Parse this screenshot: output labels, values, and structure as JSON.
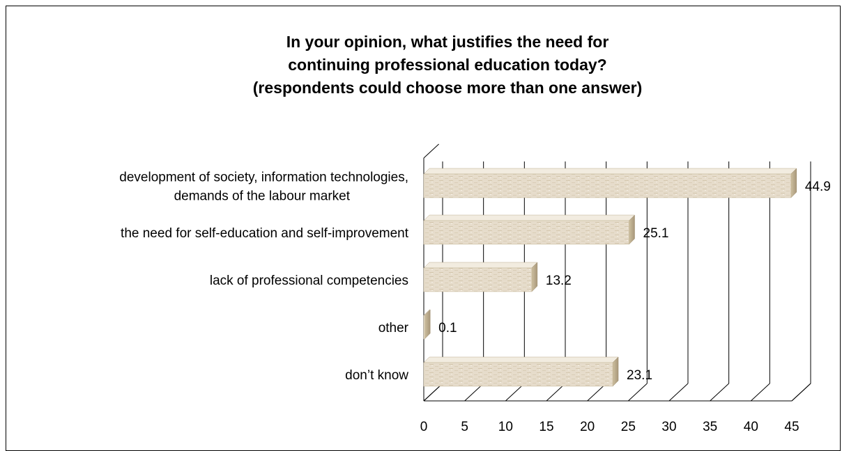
{
  "chart_data": {
    "type": "bar",
    "orientation": "horizontal",
    "style": "3d",
    "title_lines": [
      "In your opinion, what justifies the need for",
      "continuing professional education today?",
      "(respondents could choose more than one answer)"
    ],
    "categories": [
      [
        "development of society, information technologies,",
        "demands of the labour market"
      ],
      [
        "the need for self-education and self-improvement"
      ],
      [
        "lack of professional competencies"
      ],
      [
        "other"
      ],
      [
        "don’t know"
      ]
    ],
    "values": [
      44.9,
      25.1,
      13.2,
      0.1,
      23.1
    ],
    "data_labels": [
      "44.9",
      "25.1",
      "13.2",
      "0.1",
      "23.1"
    ],
    "xticks": [
      "0",
      "5",
      "10",
      "15",
      "20",
      "25",
      "30",
      "35",
      "40",
      "45"
    ],
    "xlim": [
      0,
      45
    ],
    "grid": true,
    "legend": "none",
    "colors": {
      "bar_fill": "#e6dccb",
      "bar_side": "#bfb08f",
      "bar_top": "#f2ece0",
      "grid": "#000000"
    }
  }
}
